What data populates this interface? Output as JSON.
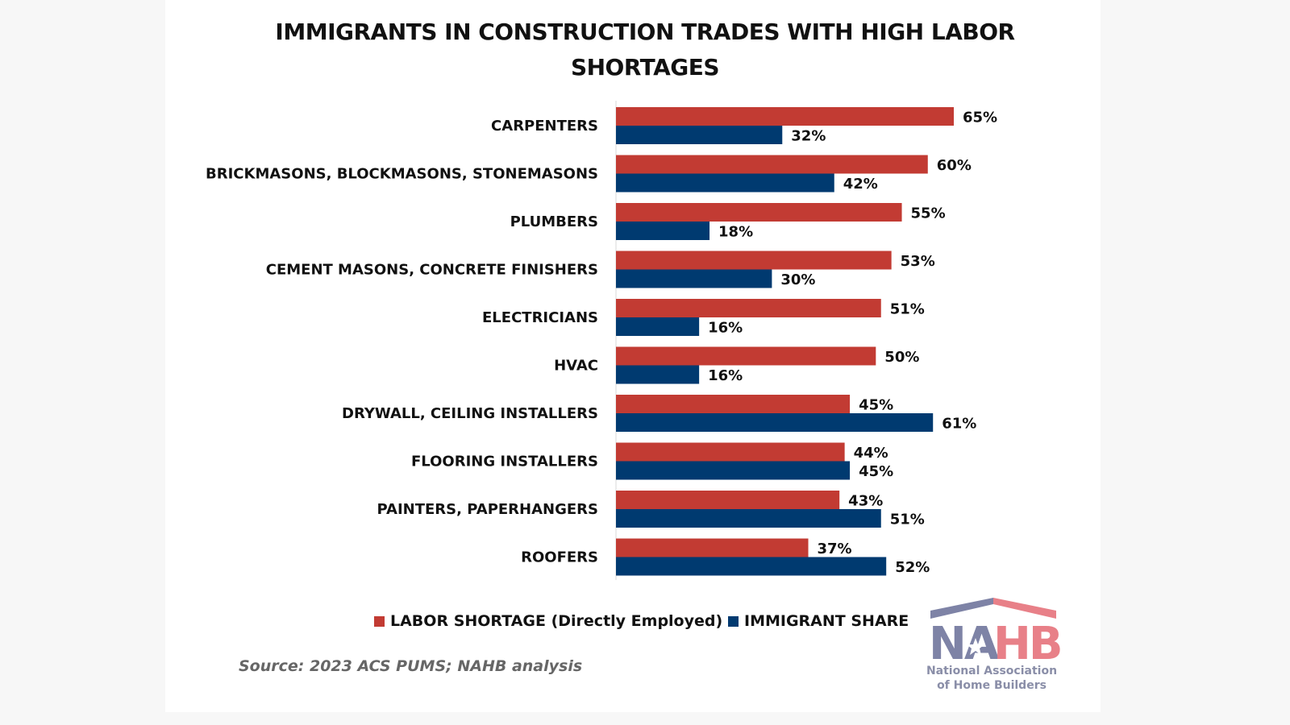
{
  "chart_data": {
    "type": "bar",
    "orientation": "horizontal",
    "title": "IMMIGRANTS IN CONSTRUCTION TRADES WITH HIGH LABOR SHORTAGES",
    "categories": [
      "CARPENTERS",
      "BRICKMASONS, BLOCKMASONS, STONEMASONS",
      "PLUMBERS",
      "CEMENT MASONS, CONCRETE FINISHERS",
      "ELECTRICIANS",
      "HVAC",
      "DRYWALL, CEILING INSTALLERS",
      "FLOORING INSTALLERS",
      "PAINTERS, PAPERHANGERS",
      "ROOFERS"
    ],
    "series": [
      {
        "name": "LABOR SHORTAGE (Directly Employed)",
        "color": "#c23b33",
        "values": [
          65,
          60,
          55,
          53,
          51,
          50,
          45,
          44,
          43,
          37
        ]
      },
      {
        "name": "IMMIGRANT SHARE",
        "color": "#003a70",
        "values": [
          32,
          42,
          18,
          30,
          16,
          16,
          61,
          45,
          51,
          52
        ]
      }
    ],
    "value_format": "%",
    "xlim": [
      0,
      70
    ],
    "grid": false,
    "legend_placement": "bottom",
    "source": "Source: 2023 ACS PUMS; NAHB analysis"
  },
  "logo": {
    "text": "NAHB",
    "caption_line1": "National Association",
    "caption_line2": "of Home Builders",
    "colors": {
      "blue": "#7e83a6",
      "red": "#e88088"
    }
  }
}
